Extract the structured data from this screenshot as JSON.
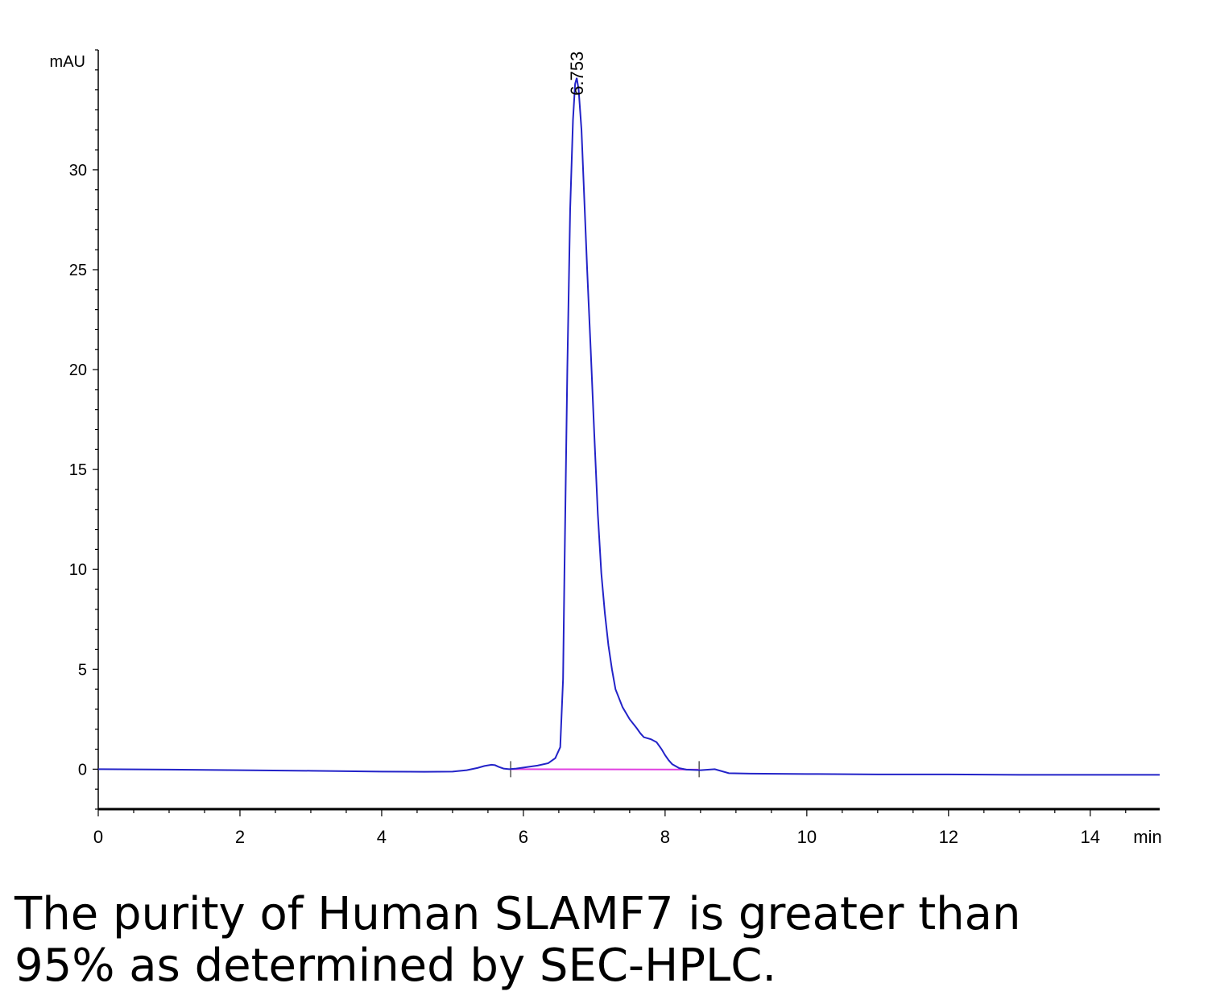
{
  "chart_data": {
    "type": "line",
    "title": "",
    "xlabel": "min",
    "ylabel": "mAU",
    "xlim": [
      0,
      14.98
    ],
    "ylim": [
      -2.0,
      36.0
    ],
    "x_ticks": [
      0,
      2,
      4,
      6,
      8,
      10,
      12,
      14
    ],
    "y_ticks": [
      0,
      5,
      10,
      15,
      20,
      25,
      30
    ],
    "grid": false,
    "series": [
      {
        "color": "#2323c8",
        "x": [
          0,
          1,
          2,
          3,
          4,
          4.6,
          5.0,
          5.2,
          5.35,
          5.45,
          5.55,
          5.6,
          5.65,
          5.72,
          5.8,
          5.9,
          6.0,
          6.2,
          6.35,
          6.45,
          6.52,
          6.56,
          6.58,
          6.62,
          6.66,
          6.7,
          6.73,
          6.753,
          6.78,
          6.82,
          6.86,
          6.9,
          6.95,
          7.0,
          7.05,
          7.1,
          7.15,
          7.2,
          7.25,
          7.3,
          7.4,
          7.5,
          7.6,
          7.65,
          7.7,
          7.8,
          7.88,
          7.95,
          8.0,
          8.05,
          8.1,
          8.2,
          8.3,
          8.5,
          8.7,
          8.9,
          9.2,
          10,
          11,
          12,
          13,
          14,
          14.98
        ],
        "y": [
          0.0,
          -0.02,
          -0.05,
          -0.08,
          -0.12,
          -0.13,
          -0.12,
          -0.05,
          0.06,
          0.16,
          0.22,
          0.2,
          0.12,
          0.03,
          0.0,
          0.03,
          0.08,
          0.18,
          0.3,
          0.55,
          1.1,
          4.5,
          10.0,
          20.0,
          28.0,
          32.5,
          34.3,
          34.6,
          34.0,
          32.0,
          28.5,
          25.0,
          21.0,
          16.8,
          12.8,
          9.8,
          7.8,
          6.2,
          5.0,
          4.0,
          3.1,
          2.5,
          2.05,
          1.8,
          1.6,
          1.5,
          1.35,
          1.0,
          0.7,
          0.45,
          0.25,
          0.05,
          -0.02,
          -0.05,
          0.0,
          -0.2,
          -0.22,
          -0.24,
          -0.26,
          -0.26,
          -0.28,
          -0.28,
          -0.28
        ]
      }
    ],
    "baseline": {
      "color": "#e040e0",
      "x": [
        5.82,
        8.48
      ],
      "y": [
        0.0,
        -0.02
      ]
    },
    "integration_marks": [
      5.82,
      8.48
    ],
    "peak_label": {
      "x": 6.753,
      "y": 34.6,
      "text": "6.753"
    }
  },
  "caption": {
    "line1": "The purity of Human SLAMF7 is greater than",
    "line2": "95% as determined by SEC-HPLC."
  }
}
